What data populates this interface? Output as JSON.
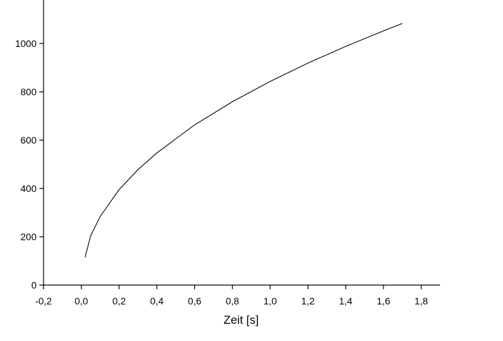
{
  "chart_data": {
    "type": "line",
    "x_label": "Zeit [s]",
    "x": [
      0.02,
      0.05,
      0.1,
      0.2,
      0.3,
      0.4,
      0.6,
      0.8,
      1.0,
      1.2,
      1.4,
      1.6,
      1.7
    ],
    "series": [
      {
        "color": "#000000",
        "values": [
          115,
          205,
          284,
          395,
          478,
          547,
          663,
          759,
          843,
          919,
          988,
          1052,
          1083
        ]
      }
    ],
    "xlim": [
      -0.2,
      1.9
    ],
    "ylim": [
      0,
      1180
    ],
    "xticks": [
      {
        "value": -0.2,
        "label": "-0,2"
      },
      {
        "value": 0,
        "label": "0,0"
      },
      {
        "value": 0.2,
        "label": "0,2"
      },
      {
        "value": 0.4,
        "label": "0,4"
      },
      {
        "value": 0.6,
        "label": "0,6"
      },
      {
        "value": 0.8,
        "label": "0,8"
      },
      {
        "value": 1.0,
        "label": "1,0"
      },
      {
        "value": 1.2,
        "label": "1,2"
      },
      {
        "value": 1.4,
        "label": "1,4"
      },
      {
        "value": 1.6,
        "label": "1,6"
      },
      {
        "value": 1.8,
        "label": "1,8"
      }
    ],
    "yticks": [
      0,
      200,
      400,
      600,
      800,
      1000
    ],
    "grid": false
  }
}
